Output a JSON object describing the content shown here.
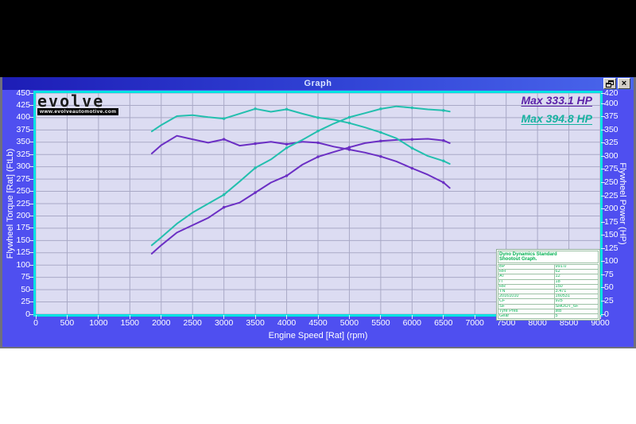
{
  "window": {
    "title": "Graph",
    "close_glyph": "×",
    "buttons": [
      "restore",
      "close"
    ]
  },
  "logo": {
    "brand": "evolve",
    "site": "www.evolveautomotive.com"
  },
  "annotations": {
    "max_run1": "Max 333.1 HP",
    "max_run2": "Max 394.8 HP"
  },
  "info_table": {
    "title_line1": "Dyno Dynamics Standard",
    "title_line2": "Shootout Graph.",
    "rows": [
      [
        "BP",
        "991.0"
      ],
      [
        "RH",
        "62"
      ],
      [
        "AT",
        "12"
      ],
      [
        "IT",
        "18"
      ],
      [
        "RR",
        "150"
      ],
      [
        "TN",
        "3.471"
      ],
      [
        "20161010",
        "160531"
      ],
      [
        "CF",
        "925"
      ],
      [
        "SF",
        "SHOOT_6F"
      ],
      [
        "Tyre Pres",
        "std"
      ],
      [
        "Gear",
        "5"
      ]
    ]
  },
  "colors": {
    "accent_cyan_frame": "#00e2e2",
    "run1_purple": "#6b2fc4",
    "run2_teal": "#23bfae",
    "window_blue": "#4f4ff0",
    "plot_bg": "#dcdcf2",
    "grid": "#a9a9c6",
    "table_green": "#00b050"
  },
  "chart_data": {
    "type": "line",
    "title": "Graph",
    "legend_position": "top-right max labels",
    "grid": true,
    "x_axis": {
      "label": "Engine Speed [Rat] (rpm)",
      "min": 0,
      "max": 9000,
      "ticks": [
        0,
        500,
        1000,
        1500,
        2000,
        2500,
        3000,
        3500,
        4000,
        4500,
        5000,
        5500,
        6000,
        6500,
        7000,
        7500,
        8000,
        8500,
        9000
      ]
    },
    "y_left": {
      "label": "Flywheel Torque [Rat] (FtLb)",
      "min": 0,
      "max": 450,
      "ticks": [
        0,
        25,
        50,
        75,
        100,
        125,
        150,
        175,
        200,
        225,
        250,
        275,
        300,
        325,
        350,
        375,
        400,
        425,
        450
      ]
    },
    "y_right": {
      "label": "Flywheel Power (HP)",
      "min": 0,
      "max": 420,
      "ticks": [
        0,
        25,
        50,
        75,
        100,
        125,
        150,
        175,
        200,
        225,
        250,
        275,
        300,
        325,
        350,
        375,
        400,
        420
      ]
    },
    "rpm": [
      1850,
      2000,
      2250,
      2500,
      2750,
      3000,
      3250,
      3500,
      3750,
      4000,
      4250,
      4500,
      4750,
      5000,
      5250,
      5500,
      5750,
      6000,
      6250,
      6500,
      6600
    ],
    "series": [
      {
        "name": "run1-torque",
        "axis": "left",
        "unit": "FtLb",
        "color": "#6b2fc4",
        "values": [
          327,
          344,
          363,
          356,
          349,
          356,
          343,
          347,
          351,
          346,
          351,
          349,
          341,
          335,
          329,
          321,
          311,
          297,
          284,
          268,
          257
        ]
      },
      {
        "name": "run1-power",
        "axis": "right",
        "unit": "HP",
        "color": "#6b2fc4",
        "max_hp": 333.1,
        "values": [
          115,
          131,
          155,
          169,
          183,
          203,
          212,
          231,
          250,
          263,
          284,
          299,
          308,
          317,
          325,
          329,
          331,
          332,
          333.1,
          330,
          325
        ]
      },
      {
        "name": "run2-torque",
        "axis": "left",
        "unit": "FtLb",
        "color": "#23bfae",
        "values": [
          372,
          385,
          403,
          405,
          401,
          398,
          408,
          418,
          412,
          417,
          408,
          400,
          396,
          389,
          380,
          370,
          358,
          338,
          322,
          312,
          306
        ]
      },
      {
        "name": "run2-power",
        "axis": "right",
        "unit": "HP",
        "color": "#23bfae",
        "max_hp": 394.8,
        "values": [
          131,
          146,
          172,
          193,
          210,
          227,
          252,
          278,
          294,
          316,
          331,
          348,
          362,
          374,
          382,
          390,
          394.8,
          392,
          389,
          387,
          385
        ]
      }
    ]
  }
}
